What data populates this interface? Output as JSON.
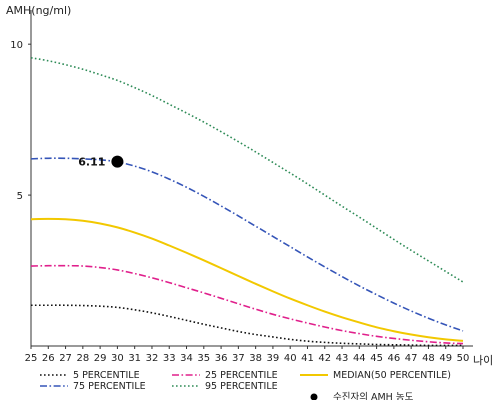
{
  "chart_data": {
    "type": "line",
    "ylabel": "AMH(ng/ml)",
    "xlabel": "나이",
    "xlim": [
      25,
      50
    ],
    "ylim": [
      0,
      11
    ],
    "x_ticks": [
      25,
      26,
      27,
      28,
      29,
      30,
      31,
      32,
      33,
      34,
      35,
      36,
      37,
      38,
      39,
      40,
      41,
      42,
      43,
      44,
      45,
      46,
      47,
      48,
      49,
      50
    ],
    "y_ticks": [
      5,
      10
    ],
    "x": [
      25,
      26,
      27,
      28,
      29,
      30,
      31,
      32,
      33,
      34,
      35,
      36,
      37,
      38,
      39,
      40,
      41,
      42,
      43,
      44,
      45,
      46,
      47,
      48,
      49,
      50
    ],
    "series": [
      {
        "name": "5 PERCENTILE",
        "color": "#111111",
        "style": "dotted",
        "values": [
          1.35,
          1.35,
          1.35,
          1.34,
          1.32,
          1.28,
          1.2,
          1.1,
          0.98,
          0.85,
          0.72,
          0.6,
          0.48,
          0.38,
          0.3,
          0.22,
          0.16,
          0.12,
          0.09,
          0.07,
          0.05,
          0.04,
          0.03,
          0.02,
          0.02,
          0.02
        ]
      },
      {
        "name": "25 PERCENTILE",
        "color": "#e0208c",
        "style": "dashdot",
        "values": [
          2.65,
          2.66,
          2.66,
          2.65,
          2.6,
          2.52,
          2.4,
          2.26,
          2.1,
          1.93,
          1.76,
          1.58,
          1.4,
          1.22,
          1.05,
          0.9,
          0.76,
          0.63,
          0.51,
          0.41,
          0.32,
          0.25,
          0.19,
          0.14,
          0.1,
          0.08
        ]
      },
      {
        "name": "MEDIAN(50 PERCENTILE)",
        "color": "#f2c800",
        "style": "solid",
        "values": [
          4.2,
          4.21,
          4.2,
          4.15,
          4.06,
          3.93,
          3.76,
          3.56,
          3.33,
          3.09,
          2.84,
          2.58,
          2.32,
          2.06,
          1.81,
          1.57,
          1.35,
          1.14,
          0.95,
          0.78,
          0.62,
          0.49,
          0.38,
          0.29,
          0.22,
          0.17
        ]
      },
      {
        "name": "75 PERCENTILE",
        "color": "#3555b8",
        "style": "dashdot",
        "values": [
          6.2,
          6.22,
          6.22,
          6.2,
          6.17,
          6.1,
          5.96,
          5.77,
          5.53,
          5.26,
          4.96,
          4.64,
          4.31,
          3.97,
          3.63,
          3.29,
          2.95,
          2.62,
          2.3,
          1.99,
          1.7,
          1.42,
          1.16,
          0.92,
          0.7,
          0.5
        ]
      },
      {
        "name": "95 PERCENTILE",
        "color": "#2e8b57",
        "style": "dotted",
        "values": [
          9.55,
          9.45,
          9.32,
          9.17,
          8.99,
          8.8,
          8.56,
          8.3,
          8.01,
          7.72,
          7.42,
          7.1,
          6.77,
          6.43,
          6.08,
          5.73,
          5.37,
          5.0,
          4.63,
          4.27,
          3.9,
          3.53,
          3.17,
          2.82,
          2.47,
          2.12
        ]
      }
    ],
    "marker": {
      "name": "수진자의 AMH 농도",
      "color": "#000000",
      "x": 30,
      "y": 6.11,
      "label": "6.11"
    },
    "legend_position": "bottom",
    "grid": false
  }
}
